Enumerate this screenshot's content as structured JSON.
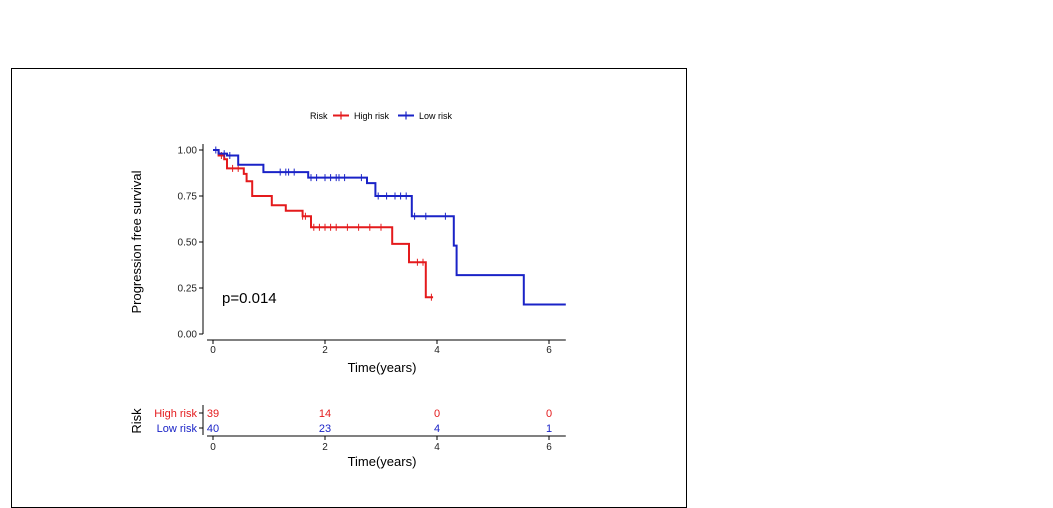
{
  "chart_data": {
    "type": "line",
    "subtype": "kaplan-meier",
    "ylabel": "Progression free survival",
    "xlabel": "Time(years)",
    "xlim": [
      0,
      6.3
    ],
    "ylim": [
      0,
      1
    ],
    "x_ticks": [
      "0",
      "2",
      "4",
      "6"
    ],
    "x_tick_values": [
      0,
      2,
      4,
      6
    ],
    "y_ticks": [
      "0.00",
      "0.25",
      "0.50",
      "0.75",
      "1.00"
    ],
    "y_tick_values": [
      0,
      0.25,
      0.5,
      0.75,
      1.0
    ],
    "p_value_text": "p=0.014",
    "legend": {
      "title": "Risk",
      "placement": "top"
    },
    "series": [
      {
        "name": "High risk",
        "color": "#e41a1c",
        "steps": [
          [
            0,
            1.0
          ],
          [
            0.1,
            0.97
          ],
          [
            0.2,
            0.95
          ],
          [
            0.25,
            0.9
          ],
          [
            0.55,
            0.87
          ],
          [
            0.6,
            0.83
          ],
          [
            0.7,
            0.75
          ],
          [
            1.05,
            0.7
          ],
          [
            1.3,
            0.67
          ],
          [
            1.6,
            0.64
          ],
          [
            1.75,
            0.58
          ],
          [
            3.2,
            0.49
          ],
          [
            3.5,
            0.39
          ],
          [
            3.8,
            0.2
          ],
          [
            3.93,
            0.2
          ]
        ],
        "censor_times": [
          0.15,
          0.35,
          0.45,
          1.6,
          1.65,
          1.8,
          1.9,
          2.0,
          2.1,
          2.2,
          2.4,
          2.6,
          2.8,
          3.0,
          3.65,
          3.75,
          3.9
        ]
      },
      {
        "name": "Low risk",
        "color": "#1a23c7",
        "steps": [
          [
            0,
            1.0
          ],
          [
            0.1,
            0.98
          ],
          [
            0.25,
            0.97
          ],
          [
            0.45,
            0.92
          ],
          [
            0.9,
            0.88
          ],
          [
            1.7,
            0.85
          ],
          [
            2.75,
            0.82
          ],
          [
            2.9,
            0.75
          ],
          [
            3.55,
            0.64
          ],
          [
            4.3,
            0.48
          ],
          [
            4.35,
            0.32
          ],
          [
            5.55,
            0.16
          ],
          [
            6.3,
            0.16
          ]
        ],
        "censor_times": [
          0.05,
          0.2,
          0.3,
          1.2,
          1.3,
          1.35,
          1.45,
          1.75,
          1.85,
          2.0,
          2.1,
          2.2,
          2.25,
          2.35,
          2.65,
          2.95,
          3.1,
          3.25,
          3.35,
          3.45,
          3.6,
          3.8,
          4.15
        ]
      }
    ],
    "risk_table": {
      "title": "Risk",
      "xlabel": "Time(years)",
      "time_points": [
        0,
        2,
        4,
        6
      ],
      "x_ticks": [
        "0",
        "2",
        "4",
        "6"
      ],
      "rows": [
        {
          "label": "High risk",
          "color": "#e41a1c",
          "counts": [
            "39",
            "14",
            "0",
            "0"
          ]
        },
        {
          "label": "Low risk",
          "color": "#1a23c7",
          "counts": [
            "40",
            "23",
            "4",
            "1"
          ]
        }
      ]
    }
  }
}
